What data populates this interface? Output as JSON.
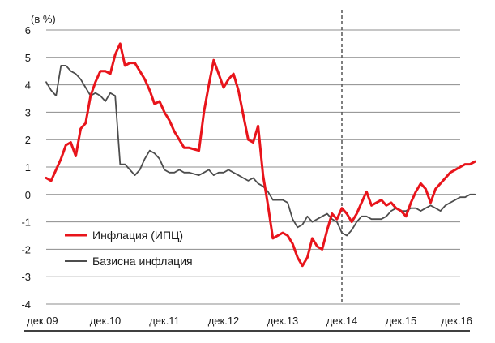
{
  "chart_data": {
    "type": "line",
    "unit_label": "(в %)",
    "ylim": [
      -4,
      6
    ],
    "y_ticks": [
      "6",
      "5",
      "4",
      "3",
      "2",
      "1",
      "0",
      "-1",
      "-2",
      "-3",
      "-4"
    ],
    "x_ticks": [
      "дек.09",
      "дек.10",
      "дек.11",
      "дек.12",
      "дек.13",
      "дек.14",
      "дек.15",
      "дек.16"
    ],
    "grid": true,
    "legend_position": "bottom-left",
    "vertical_marker_at_month": 60,
    "series": [
      {
        "name": "Инфлация (ИПЦ)",
        "color": "#e8141b",
        "values": [
          0.6,
          0.5,
          0.9,
          1.3,
          1.8,
          1.9,
          1.4,
          2.4,
          2.6,
          3.6,
          4.1,
          4.5,
          4.5,
          4.4,
          5.1,
          5.5,
          4.7,
          4.8,
          4.8,
          4.5,
          4.2,
          3.8,
          3.3,
          3.4,
          3.0,
          2.7,
          2.3,
          2.0,
          1.7,
          1.7,
          1.65,
          1.6,
          3.0,
          4.0,
          4.9,
          4.4,
          3.9,
          4.2,
          4.4,
          3.8,
          2.9,
          2.0,
          1.9,
          2.5,
          0.7,
          -0.4,
          -1.6,
          -1.5,
          -1.4,
          -1.5,
          -1.8,
          -2.3,
          -2.6,
          -2.3,
          -1.6,
          -1.9,
          -2.0,
          -1.3,
          -0.7,
          -0.9,
          -0.5,
          -0.7,
          -1.0,
          -0.7,
          -0.3,
          0.1,
          -0.4,
          -0.3,
          -0.2,
          -0.4,
          -0.3,
          -0.5,
          -0.6,
          -0.8,
          -0.3,
          0.1,
          0.4,
          0.2,
          -0.3,
          0.2,
          0.4,
          0.6,
          0.8,
          0.9,
          1.0,
          1.1,
          1.1,
          1.2
        ]
      },
      {
        "name": "Базисна инфлация",
        "color": "#4d4d4d",
        "values": [
          4.1,
          3.8,
          3.6,
          4.7,
          4.7,
          4.5,
          4.4,
          4.2,
          3.9,
          3.6,
          3.7,
          3.6,
          3.4,
          3.7,
          3.6,
          1.1,
          1.1,
          0.9,
          0.7,
          0.9,
          1.3,
          1.6,
          1.5,
          1.3,
          0.9,
          0.8,
          0.8,
          0.9,
          0.8,
          0.8,
          0.75,
          0.7,
          0.8,
          0.9,
          0.7,
          0.8,
          0.8,
          0.9,
          0.8,
          0.7,
          0.6,
          0.5,
          0.6,
          0.4,
          0.3,
          0.1,
          -0.2,
          -0.2,
          -0.2,
          -0.3,
          -0.9,
          -1.2,
          -1.1,
          -0.8,
          -1.0,
          -0.9,
          -0.8,
          -0.7,
          -0.9,
          -1.0,
          -1.4,
          -1.5,
          -1.3,
          -1.0,
          -0.8,
          -0.8,
          -0.9,
          -0.9,
          -0.9,
          -0.8,
          -0.6,
          -0.5,
          -0.6,
          -0.6,
          -0.5,
          -0.5,
          -0.6,
          -0.5,
          -0.4,
          -0.5,
          -0.6,
          -0.4,
          -0.3,
          -0.2,
          -0.1,
          -0.1,
          0.0,
          0.0
        ]
      }
    ]
  }
}
